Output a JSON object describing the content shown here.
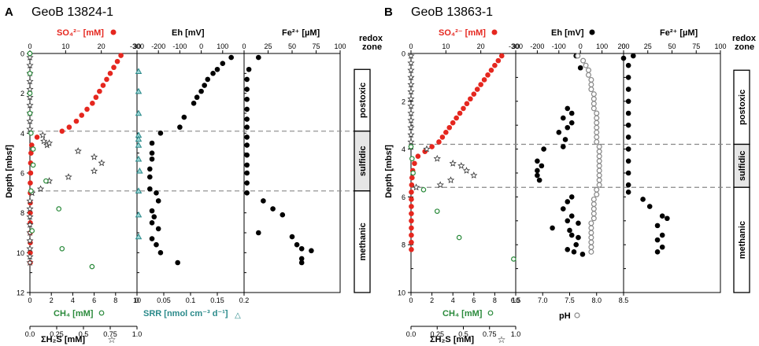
{
  "chart_data": [
    {
      "type": "scatter",
      "panel_label": "A",
      "title": "GeoB 13824-1",
      "depth_label": "Depth [mbsf]",
      "depth_range": [
        0,
        12
      ],
      "depth_ticks": [
        0,
        2,
        4,
        6,
        8,
        10,
        12
      ],
      "sulfate_label": "SO₄²⁻ [mM]",
      "sulfate_range": [
        0,
        30
      ],
      "sulfate_ticks": [
        0,
        10,
        20,
        30
      ],
      "eh_label": "Eh [mV]",
      "eh_range": [
        -300,
        200
      ],
      "eh_ticks": [
        -300,
        -200,
        -100,
        0,
        100
      ],
      "fe_label": "Fe²⁺ [µM]",
      "fe_range": [
        0,
        100
      ],
      "fe_ticks": [
        0,
        25,
        50,
        75,
        100
      ],
      "ch4_label": "CH₄ [mM]",
      "ch4_range": [
        0,
        10
      ],
      "ch4_ticks": [
        0,
        2,
        4,
        6,
        8,
        10
      ],
      "h2s_label": "ΣH₂S [mM]",
      "h2s_range": [
        0,
        1
      ],
      "h2s_ticks": [
        "0.0",
        "0.25",
        "0.5",
        "0.75",
        "1.0"
      ],
      "srr_label": "SRR [nmol cm⁻³ d⁻¹]",
      "srr_range": [
        0,
        0.2
      ],
      "srr_ticks": [
        "0",
        "0.05",
        "0.1",
        "0.15",
        "0.2"
      ],
      "redox_header": [
        "redox",
        "zone"
      ],
      "zones": [
        {
          "name": "postoxic",
          "top": 0.8,
          "bottom": 3.9
        },
        {
          "name": "sulfidic",
          "top": 3.9,
          "bottom": 6.9
        },
        {
          "name": "methanic",
          "top": 6.9,
          "bottom": 12
        }
      ],
      "boundaries": [
        3.9,
        6.9
      ],
      "sulfate": [
        [
          25.5,
          0.1
        ],
        [
          24.5,
          0.4
        ],
        [
          23.5,
          0.7
        ],
        [
          22.5,
          1.0
        ],
        [
          21.5,
          1.3
        ],
        [
          20.5,
          1.6
        ],
        [
          19.5,
          1.9
        ],
        [
          18.5,
          2.2
        ],
        [
          17.5,
          2.5
        ],
        [
          16,
          2.8
        ],
        [
          14.5,
          3.1
        ],
        [
          13,
          3.4
        ],
        [
          11,
          3.7
        ],
        [
          9,
          3.9
        ],
        [
          2,
          4.2
        ],
        [
          0.5,
          4.6
        ],
        [
          0.3,
          5.0
        ],
        [
          0.2,
          5.5
        ],
        [
          0.2,
          6.0
        ],
        [
          0.1,
          6.5
        ],
        [
          0.1,
          7.0
        ],
        [
          0.1,
          7.5
        ],
        [
          0.1,
          8.0
        ],
        [
          0.1,
          8.5
        ],
        [
          0.1,
          9.0
        ],
        [
          0.1,
          9.5
        ],
        [
          0.1,
          10.0
        ],
        [
          0.1,
          10.5
        ]
      ],
      "ch4": [
        [
          0,
          0
        ],
        [
          0,
          1
        ],
        [
          0,
          2
        ],
        [
          0,
          3
        ],
        [
          0.1,
          4.0
        ],
        [
          0.3,
          4.8
        ],
        [
          0.3,
          5.6
        ],
        [
          1.5,
          6.4
        ],
        [
          0.1,
          6.9
        ],
        [
          2.7,
          7.8
        ],
        [
          0.2,
          8.9
        ],
        [
          3.0,
          9.8
        ],
        [
          5.8,
          10.7
        ]
      ],
      "h2s": [
        [
          0,
          0.2
        ],
        [
          0,
          0.6
        ],
        [
          0,
          1.0
        ],
        [
          0,
          1.4
        ],
        [
          0,
          1.8
        ],
        [
          0,
          2.2
        ],
        [
          0,
          2.6
        ],
        [
          0,
          3.0
        ],
        [
          0,
          3.4
        ],
        [
          0,
          3.8
        ],
        [
          0.12,
          4.1
        ],
        [
          0.13,
          4.4
        ],
        [
          0.16,
          4.6
        ],
        [
          0.18,
          4.5
        ],
        [
          0.45,
          4.9
        ],
        [
          0.6,
          5.2
        ],
        [
          0.67,
          5.5
        ],
        [
          0.6,
          5.9
        ],
        [
          0.36,
          6.2
        ],
        [
          0.18,
          6.4
        ],
        [
          0.1,
          6.8
        ],
        [
          0.02,
          7.0
        ],
        [
          0,
          7.4
        ],
        [
          0,
          7.8
        ],
        [
          0,
          8.2
        ],
        [
          0,
          8.6
        ],
        [
          0,
          9.0
        ],
        [
          0,
          9.4
        ],
        [
          0,
          9.8
        ],
        [
          0,
          10.2
        ],
        [
          0,
          10.5
        ]
      ],
      "eh": [
        [
          140,
          0.2
        ],
        [
          100,
          0.5
        ],
        [
          75,
          0.8
        ],
        [
          55,
          1.0
        ],
        [
          30,
          1.3
        ],
        [
          15,
          1.6
        ],
        [
          0,
          1.9
        ],
        [
          -20,
          2.2
        ],
        [
          -35,
          2.5
        ],
        [
          -80,
          3.2
        ],
        [
          -100,
          3.7
        ],
        [
          -190,
          4.0
        ],
        [
          -230,
          4.5
        ],
        [
          -230,
          5.0
        ],
        [
          -230,
          5.3
        ],
        [
          -240,
          5.8
        ],
        [
          -240,
          6.2
        ],
        [
          -240,
          6.8
        ],
        [
          -210,
          7.0
        ],
        [
          -200,
          7.4
        ],
        [
          -230,
          7.9
        ],
        [
          -220,
          8.2
        ],
        [
          -230,
          8.5
        ],
        [
          -200,
          8.8
        ],
        [
          -230,
          9.3
        ],
        [
          -210,
          9.6
        ],
        [
          -190,
          10.0
        ],
        [
          -110,
          10.5
        ]
      ],
      "srr": [
        [
          0,
          0.9
        ],
        [
          0,
          1.9
        ],
        [
          0,
          3.0
        ],
        [
          0,
          4.1
        ],
        [
          0,
          4.3
        ],
        [
          0,
          4.6
        ],
        [
          0,
          5.3
        ],
        [
          0.002,
          5.9
        ],
        [
          0,
          6.9
        ],
        [
          0,
          8.1
        ],
        [
          0,
          9.2
        ]
      ],
      "fe": [
        [
          15,
          0.2
        ],
        [
          5,
          0.8
        ],
        [
          3,
          1.3
        ],
        [
          3,
          1.8
        ],
        [
          3,
          2.3
        ],
        [
          3,
          2.8
        ],
        [
          3,
          3.3
        ],
        [
          3,
          3.7
        ],
        [
          3,
          4.2
        ],
        [
          3,
          4.6
        ],
        [
          3,
          5.1
        ],
        [
          3,
          5.6
        ],
        [
          3,
          6.0
        ],
        [
          3,
          6.5
        ],
        [
          3,
          7.0
        ],
        [
          20,
          7.4
        ],
        [
          30,
          7.8
        ],
        [
          40,
          8.1
        ],
        [
          15,
          9.0
        ],
        [
          50,
          9.2
        ],
        [
          55,
          9.6
        ],
        [
          60,
          9.8
        ],
        [
          70,
          9.9
        ],
        [
          60,
          10.3
        ],
        [
          60,
          10.5
        ]
      ]
    },
    {
      "type": "scatter",
      "panel_label": "B",
      "title": "GeoB 13863-1",
      "depth_label": "Depth [mbsf]",
      "depth_range": [
        0,
        10
      ],
      "depth_ticks": [
        0,
        2,
        4,
        6,
        8,
        10
      ],
      "sulfate_label": "SO₄²⁻ [mM]",
      "sulfate_range": [
        0,
        30
      ],
      "sulfate_ticks": [
        0,
        10,
        20,
        30
      ],
      "eh_label": "Eh [mV]",
      "eh_range": [
        -300,
        200
      ],
      "eh_ticks": [
        -300,
        -200,
        -100,
        0,
        100,
        200
      ],
      "fe_label": "Fe²⁺ [µM]",
      "fe_range": [
        0,
        100
      ],
      "fe_ticks": [
        0,
        25,
        50,
        75,
        100
      ],
      "ch4_label": "CH₄ [mM]",
      "ch4_range": [
        0,
        10
      ],
      "ch4_ticks": [
        0,
        2,
        4,
        6,
        8,
        10
      ],
      "h2s_label": "ΣH₂S [mM]",
      "h2s_range": [
        0,
        1
      ],
      "h2s_ticks": [
        "0.0",
        "0.25",
        "0.5",
        "0.75",
        "1.0"
      ],
      "ph_label": "pH",
      "ph_range": [
        6.5,
        8.5
      ],
      "ph_ticks": [
        "6.5",
        "7.0",
        "7.5",
        "8.0",
        "8.5"
      ],
      "redox_header": [
        "redox",
        "zone"
      ],
      "zones": [
        {
          "name": "postoxic",
          "top": 0.7,
          "bottom": 3.8
        },
        {
          "name": "sulfidic",
          "top": 3.8,
          "bottom": 5.6
        },
        {
          "name": "methanic",
          "top": 5.6,
          "bottom": 10
        }
      ],
      "boundaries": [
        3.8,
        5.6
      ],
      "sulfate": [
        [
          26,
          0.1
        ],
        [
          25,
          0.3
        ],
        [
          24,
          0.5
        ],
        [
          23,
          0.7
        ],
        [
          22,
          0.9
        ],
        [
          21,
          1.1
        ],
        [
          20,
          1.3
        ],
        [
          19,
          1.5
        ],
        [
          18,
          1.7
        ],
        [
          17,
          1.9
        ],
        [
          16,
          2.1
        ],
        [
          15,
          2.3
        ],
        [
          14,
          2.5
        ],
        [
          13,
          2.7
        ],
        [
          12,
          2.9
        ],
        [
          11,
          3.1
        ],
        [
          10,
          3.3
        ],
        [
          9,
          3.5
        ],
        [
          8,
          3.7
        ],
        [
          6,
          3.9
        ],
        [
          4,
          4.1
        ],
        [
          2,
          4.3
        ],
        [
          1,
          4.6
        ],
        [
          0.5,
          4.9
        ],
        [
          0.3,
          5.2
        ],
        [
          0.2,
          5.5
        ],
        [
          0.1,
          5.8
        ],
        [
          0.1,
          6.1
        ],
        [
          0.1,
          6.4
        ],
        [
          0.1,
          6.7
        ],
        [
          0.1,
          7.0
        ],
        [
          0.1,
          7.3
        ],
        [
          0.1,
          7.6
        ],
        [
          0.1,
          7.9
        ],
        [
          0.1,
          8.2
        ]
      ],
      "ch4": [
        [
          0,
          3.9
        ],
        [
          0.1,
          4.4
        ],
        [
          0.2,
          5.0
        ],
        [
          1.2,
          5.7
        ],
        [
          2.5,
          6.6
        ],
        [
          4.6,
          7.7
        ],
        [
          9.8,
          8.6
        ]
      ],
      "h2s": [
        [
          0,
          0.1
        ],
        [
          0,
          0.4
        ],
        [
          0,
          0.7
        ],
        [
          0,
          1.0
        ],
        [
          0,
          1.3
        ],
        [
          0,
          1.6
        ],
        [
          0,
          1.9
        ],
        [
          0,
          2.2
        ],
        [
          0,
          2.5
        ],
        [
          0,
          2.8
        ],
        [
          0,
          3.1
        ],
        [
          0,
          3.4
        ],
        [
          0,
          3.7
        ],
        [
          0.15,
          4.0
        ],
        [
          0.25,
          4.4
        ],
        [
          0.4,
          4.6
        ],
        [
          0.48,
          4.7
        ],
        [
          0.53,
          4.9
        ],
        [
          0.6,
          5.1
        ],
        [
          0.38,
          5.3
        ],
        [
          0.28,
          5.5
        ],
        [
          0.05,
          5.6
        ]
      ],
      "eh": [
        [
          200,
          0.2
        ],
        [
          -20,
          0.1
        ],
        [
          0,
          0.6
        ],
        [
          -60,
          2.3
        ],
        [
          -40,
          2.5
        ],
        [
          -80,
          2.7
        ],
        [
          -40,
          2.9
        ],
        [
          -60,
          3.1
        ],
        [
          -100,
          3.3
        ],
        [
          -70,
          3.6
        ],
        [
          -80,
          3.9
        ],
        [
          -170,
          4.0
        ],
        [
          -200,
          4.5
        ],
        [
          -180,
          4.7
        ],
        [
          -200,
          4.9
        ],
        [
          -200,
          5.1
        ],
        [
          -190,
          5.3
        ],
        [
          -40,
          6.0
        ],
        [
          -60,
          6.2
        ],
        [
          -80,
          6.5
        ],
        [
          -40,
          6.8
        ],
        [
          -60,
          7.0
        ],
        [
          -10,
          7.1
        ],
        [
          -130,
          7.3
        ],
        [
          -50,
          7.4
        ],
        [
          -40,
          7.6
        ],
        [
          -10,
          7.7
        ],
        [
          -20,
          8.0
        ],
        [
          -60,
          8.2
        ],
        [
          -30,
          8.3
        ],
        [
          10,
          8.4
        ]
      ],
      "ph": [
        [
          7.65,
          0.1
        ],
        [
          7.75,
          0.3
        ],
        [
          7.8,
          0.5
        ],
        [
          7.85,
          0.7
        ],
        [
          7.85,
          0.9
        ],
        [
          7.9,
          1.1
        ],
        [
          7.9,
          1.3
        ],
        [
          7.9,
          1.5
        ],
        [
          7.95,
          1.7
        ],
        [
          7.95,
          1.9
        ],
        [
          7.95,
          2.1
        ],
        [
          7.95,
          2.3
        ],
        [
          8.0,
          2.5
        ],
        [
          8.0,
          2.7
        ],
        [
          8.0,
          2.9
        ],
        [
          8.0,
          3.1
        ],
        [
          8.0,
          3.3
        ],
        [
          8.0,
          3.5
        ],
        [
          8.0,
          3.7
        ],
        [
          8.05,
          3.9
        ],
        [
          8.05,
          4.1
        ],
        [
          8.05,
          4.3
        ],
        [
          8.05,
          4.5
        ],
        [
          8.05,
          4.7
        ],
        [
          8.05,
          4.9
        ],
        [
          8.05,
          5.1
        ],
        [
          8.05,
          5.3
        ],
        [
          8.05,
          5.5
        ],
        [
          8.0,
          5.7
        ],
        [
          8.0,
          5.9
        ],
        [
          7.95,
          6.1
        ],
        [
          7.95,
          6.3
        ],
        [
          7.95,
          6.5
        ],
        [
          7.95,
          6.7
        ],
        [
          7.95,
          6.9
        ],
        [
          7.9,
          7.1
        ],
        [
          7.9,
          7.3
        ],
        [
          7.9,
          7.5
        ],
        [
          7.9,
          7.7
        ],
        [
          7.9,
          7.9
        ],
        [
          7.9,
          8.1
        ],
        [
          7.9,
          8.3
        ]
      ],
      "fe": [
        [
          10,
          0.1
        ],
        [
          5,
          0.5
        ],
        [
          5,
          1.0
        ],
        [
          5,
          1.5
        ],
        [
          5,
          2.0
        ],
        [
          5,
          2.5
        ],
        [
          5,
          3.0
        ],
        [
          5,
          3.5
        ],
        [
          5,
          4.0
        ],
        [
          5,
          4.5
        ],
        [
          5,
          5.0
        ],
        [
          5,
          5.5
        ],
        [
          5,
          5.8
        ],
        [
          20,
          6.1
        ],
        [
          27,
          6.4
        ],
        [
          40,
          6.8
        ],
        [
          45,
          6.9
        ],
        [
          35,
          7.2
        ],
        [
          40,
          7.6
        ],
        [
          35,
          7.8
        ],
        [
          40,
          8.1
        ],
        [
          35,
          8.3
        ]
      ]
    }
  ]
}
